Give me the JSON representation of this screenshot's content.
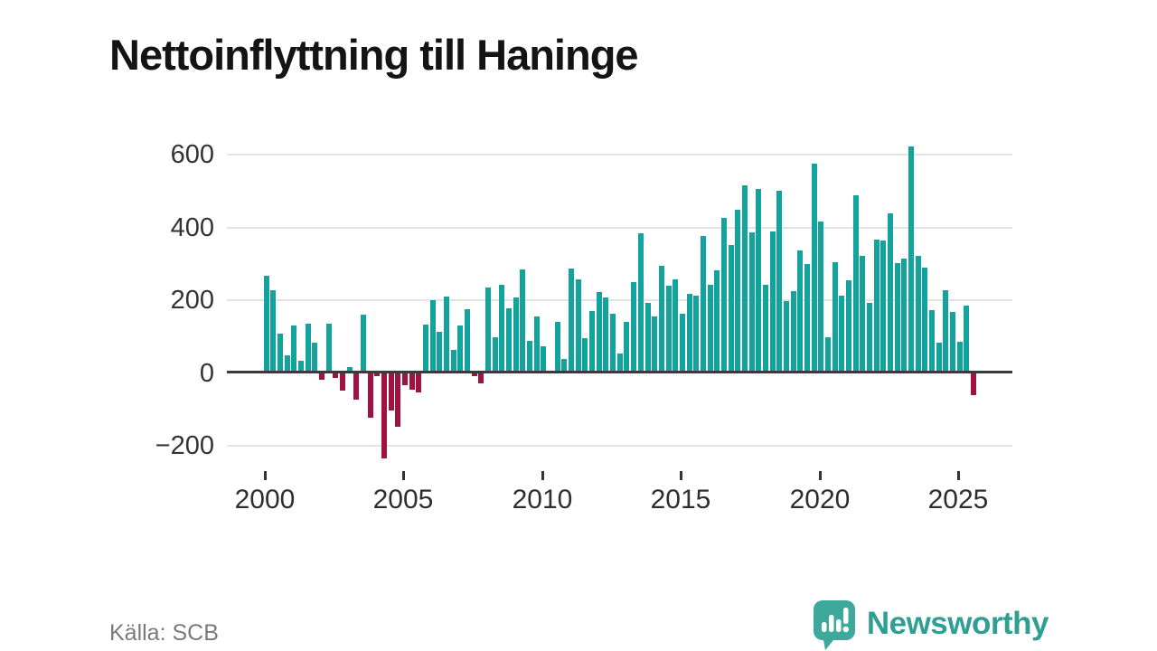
{
  "title": "Nettoinflyttning till Haninge",
  "source": "Källa: SCB",
  "branding": {
    "logo_text": "Newsworthy",
    "logo_icon": "speech-bubble-bar-chart-icon",
    "logo_color": "#3da89c",
    "text_color": "#2f9f94"
  },
  "chart_data": {
    "type": "bar",
    "title": "Nettoinflyttning till Haninge",
    "frequency": "quarterly",
    "start_year": 2000,
    "start_quarter": 1,
    "end_year": 2025,
    "end_quarter": 3,
    "x_tick_labels": [
      "2000",
      "2005",
      "2010",
      "2015",
      "2020",
      "2025"
    ],
    "x_tick_years": [
      2000,
      2005,
      2010,
      2015,
      2020,
      2025
    ],
    "y_tick_labels": [
      "600",
      "400",
      "200",
      "0",
      "−200"
    ],
    "y_tick_values": [
      600,
      400,
      200,
      0,
      -200
    ],
    "ylim": [
      -260,
      660
    ],
    "grid": true,
    "legend": "none",
    "colors": {
      "positive": "#12a39c",
      "negative": "#a11240"
    },
    "values": [
      265,
      225,
      108,
      46,
      130,
      32,
      135,
      82,
      -20,
      135,
      -15,
      -50,
      15,
      -75,
      160,
      -125,
      -10,
      -235,
      -105,
      -150,
      -35,
      -48,
      -55,
      131,
      199,
      112,
      209,
      62,
      128,
      174,
      -10,
      -30,
      233,
      97,
      241,
      177,
      205,
      284,
      88,
      155,
      72,
      2,
      140,
      38,
      285,
      256,
      95,
      170,
      220,
      206,
      161,
      53,
      140,
      248,
      382,
      192,
      154,
      292,
      239,
      257,
      162,
      215,
      212,
      375,
      241,
      280,
      424,
      350,
      446,
      515,
      386,
      505,
      242,
      388,
      500,
      197,
      224,
      336,
      297,
      574,
      415,
      96,
      304,
      212,
      254,
      487,
      321,
      192,
      365,
      363,
      437,
      301,
      314,
      621,
      321,
      288,
      172,
      81,
      226,
      167,
      85,
      183,
      -62
    ]
  }
}
